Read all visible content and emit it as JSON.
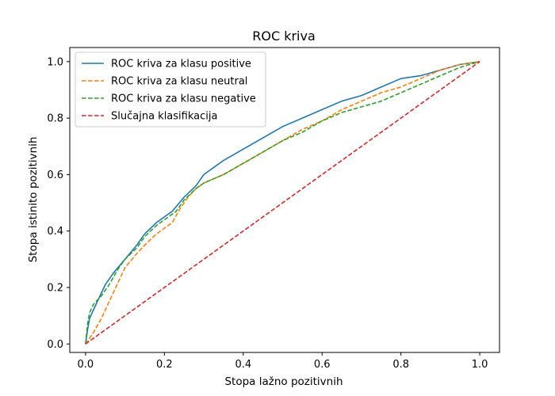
{
  "chart_data": {
    "type": "line",
    "title": "ROC kriva",
    "xlabel": "Stopa lažno pozitivnih",
    "ylabel": "Stopa istinito pozitivnih",
    "xlim": [
      -0.04,
      1.05
    ],
    "ylim": [
      -0.03,
      1.05
    ],
    "xticks": [
      0.0,
      0.2,
      0.4,
      0.6,
      0.8,
      1.0
    ],
    "yticks": [
      0.0,
      0.2,
      0.4,
      0.6,
      0.8,
      1.0
    ],
    "xtick_labels": [
      "0.0",
      "0.2",
      "0.4",
      "0.6",
      "0.8",
      "1.0"
    ],
    "ytick_labels": [
      "0.0",
      "0.2",
      "0.4",
      "0.6",
      "0.8",
      "1.0"
    ],
    "grid": false,
    "legend_position": "top-left",
    "series": [
      {
        "name": "ROC kriva za klasu positive",
        "color": "#1f77b4",
        "style": "solid",
        "x": [
          0.0,
          0.005,
          0.01,
          0.02,
          0.03,
          0.05,
          0.07,
          0.1,
          0.13,
          0.15,
          0.18,
          0.2,
          0.22,
          0.25,
          0.28,
          0.3,
          0.33,
          0.35,
          0.4,
          0.45,
          0.5,
          0.55,
          0.6,
          0.65,
          0.7,
          0.75,
          0.8,
          0.85,
          0.9,
          0.95,
          1.0
        ],
        "y": [
          0.0,
          0.05,
          0.09,
          0.12,
          0.15,
          0.21,
          0.25,
          0.3,
          0.35,
          0.39,
          0.43,
          0.45,
          0.47,
          0.52,
          0.56,
          0.6,
          0.63,
          0.65,
          0.69,
          0.73,
          0.77,
          0.8,
          0.83,
          0.86,
          0.88,
          0.91,
          0.94,
          0.95,
          0.97,
          0.99,
          1.0
        ]
      },
      {
        "name": "ROC kriva za klasu neutral",
        "color": "#ff7f0e",
        "style": "dashed",
        "x": [
          0.0,
          0.02,
          0.04,
          0.06,
          0.08,
          0.1,
          0.13,
          0.15,
          0.18,
          0.2,
          0.22,
          0.24,
          0.26,
          0.28,
          0.3,
          0.35,
          0.4,
          0.45,
          0.5,
          0.55,
          0.6,
          0.65,
          0.7,
          0.75,
          0.8,
          0.85,
          0.9,
          0.95,
          1.0
        ],
        "y": [
          0.0,
          0.04,
          0.09,
          0.15,
          0.21,
          0.27,
          0.32,
          0.35,
          0.39,
          0.41,
          0.43,
          0.48,
          0.52,
          0.55,
          0.57,
          0.6,
          0.64,
          0.68,
          0.72,
          0.76,
          0.79,
          0.83,
          0.86,
          0.89,
          0.91,
          0.94,
          0.97,
          0.99,
          1.0
        ]
      },
      {
        "name": "ROC kriva za klasu negative",
        "color": "#2ca02c",
        "style": "dashed",
        "x": [
          0.0,
          0.005,
          0.01,
          0.02,
          0.04,
          0.06,
          0.08,
          0.1,
          0.13,
          0.15,
          0.18,
          0.2,
          0.23,
          0.25,
          0.28,
          0.3,
          0.35,
          0.4,
          0.45,
          0.5,
          0.55,
          0.6,
          0.65,
          0.7,
          0.75,
          0.8,
          0.85,
          0.9,
          0.95,
          1.0
        ],
        "y": [
          0.0,
          0.07,
          0.11,
          0.14,
          0.17,
          0.21,
          0.26,
          0.3,
          0.34,
          0.38,
          0.42,
          0.44,
          0.47,
          0.51,
          0.55,
          0.57,
          0.6,
          0.64,
          0.68,
          0.72,
          0.75,
          0.79,
          0.82,
          0.84,
          0.86,
          0.89,
          0.92,
          0.95,
          0.98,
          1.0
        ]
      },
      {
        "name": "Slučajna klasifikacija",
        "color": "#d62728",
        "style": "dashed",
        "x": [
          0.0,
          1.0
        ],
        "y": [
          0.0,
          1.0
        ]
      }
    ]
  }
}
